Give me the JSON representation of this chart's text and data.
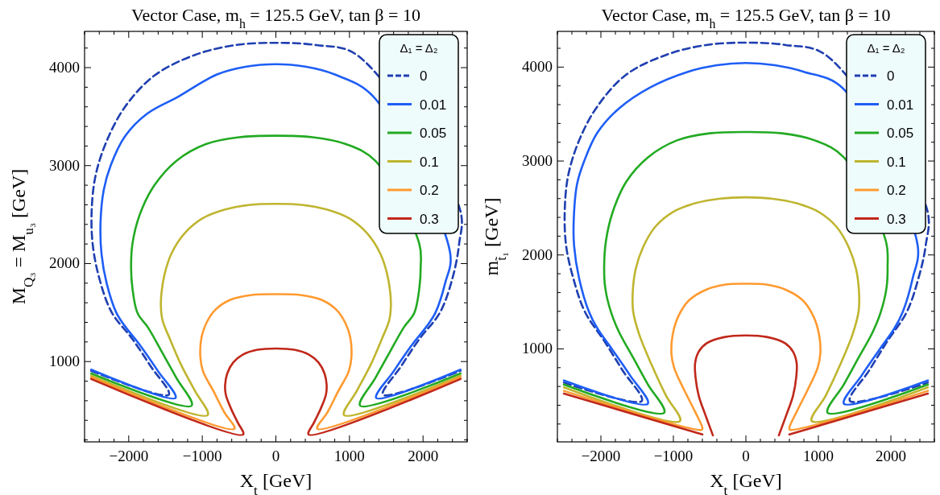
{
  "chart_data": [
    {
      "type": "line",
      "title": "Vector Case, m$_{h}$ = 125.5 GeV, tan β = 10",
      "xlabel": "X$_{t}$ [GeV]",
      "ylabel": "M$_{Q₃}$ = M$_{u₃}$ [GeV]",
      "legend_title": "Δ₁ = Δ₂",
      "legend": "top right",
      "grid": false,
      "xlim": [
        -2600,
        2600
      ],
      "ylim": [
        180,
        4370
      ],
      "xticks": [
        {
          "value": -2600,
          "label": null
        },
        {
          "value": -2400,
          "label": null
        },
        {
          "value": -2200,
          "label": null
        },
        {
          "value": -2000,
          "label": "−2000"
        },
        {
          "value": -1800,
          "label": null
        },
        {
          "value": -1600,
          "label": null
        },
        {
          "value": -1400,
          "label": null
        },
        {
          "value": -1200,
          "label": null
        },
        {
          "value": -1000,
          "label": "−1000"
        },
        {
          "value": -800,
          "label": null
        },
        {
          "value": -600,
          "label": null
        },
        {
          "value": -400,
          "label": null
        },
        {
          "value": -200,
          "label": null
        },
        0,
        {
          "value": 200,
          "label": null
        },
        {
          "value": 400,
          "label": null
        },
        {
          "value": 600,
          "label": null
        },
        {
          "value": 800,
          "label": null
        },
        1000,
        {
          "value": 1200,
          "label": null
        },
        {
          "value": 1400,
          "label": null
        },
        {
          "value": 1600,
          "label": null
        },
        {
          "value": 1800,
          "label": null
        },
        2000,
        {
          "value": 2200,
          "label": null
        },
        {
          "value": 2400,
          "label": null
        },
        {
          "value": 2600,
          "label": null
        }
      ],
      "yticks": [
        {
          "value": 200,
          "label": null
        },
        {
          "value": 400,
          "label": null
        },
        {
          "value": 600,
          "label": null
        },
        {
          "value": 800,
          "label": null
        },
        1000,
        {
          "value": 1200,
          "label": null
        },
        {
          "value": 1400,
          "label": null
        },
        {
          "value": 1600,
          "label": null
        },
        {
          "value": 1800,
          "label": null
        },
        2000,
        {
          "value": 2200,
          "label": null
        },
        {
          "value": 2400,
          "label": null
        },
        {
          "value": 2600,
          "label": null
        },
        {
          "value": 2800,
          "label": null
        },
        3000,
        {
          "value": 3200,
          "label": null
        },
        {
          "value": 3400,
          "label": null
        },
        {
          "value": 3600,
          "label": null
        },
        {
          "value": 3800,
          "label": null
        },
        4000,
        {
          "value": 4200,
          "label": null
        }
      ],
      "series": [
        {
          "name": "0",
          "color": "#1f3fb0",
          "line_style": "dashed",
          "x": [
            -2510,
            -1455,
            -1700,
            -1950,
            -2230,
            -2400,
            -2490,
            -2503,
            -2450,
            -2300,
            -2050,
            -1650,
            -1100,
            -550,
            0,
            550,
            1100,
            2503,
            2490,
            2400,
            2230,
            1950,
            1700,
            1455,
            2510
          ],
          "values": [
            905,
            661,
            950,
            1230,
            1500,
            1850,
            2200,
            2550,
            2900,
            3250,
            3600,
            3920,
            4130,
            4230,
            4253,
            4230,
            4130,
            2550,
            2200,
            1850,
            1500,
            1230,
            950,
            661,
            905
          ]
        },
        {
          "name": "0.01",
          "color": "#1e5ef5",
          "line_style": "solid",
          "x": [
            -2510,
            -1364,
            -1600,
            -1850,
            -2050,
            -2169,
            -2300,
            -2370,
            -2383,
            -2340,
            -2246,
            -2050,
            -1750,
            -1326,
            -800,
            -400,
            0,
            400,
            800,
            1326,
            2370,
            2300,
            2169,
            2050,
            1850,
            1600,
            1364,
            2510
          ],
          "values": [
            917,
            628,
            900,
            1170,
            1360,
            1500,
            1800,
            2100,
            2420,
            2750,
            3000,
            3300,
            3530,
            3704,
            3930,
            4010,
            4035,
            4010,
            3930,
            3704,
            2100,
            1800,
            1500,
            1360,
            1170,
            900,
            628,
            917
          ]
        },
        {
          "name": "0.05",
          "color": "#22aa22",
          "line_style": "solid",
          "x": [
            -2510,
            -1145,
            -1350,
            -1550,
            -1740,
            -1880,
            -1950,
            -1968,
            -1950,
            -1850,
            -1650,
            -1350,
            -950,
            -500,
            0,
            500,
            950,
            1350,
            1950,
            1968,
            1950,
            1880,
            1740,
            1550,
            1350,
            1145,
            2510
          ],
          "values": [
            878,
            550,
            830,
            1100,
            1350,
            1494,
            1750,
            1960,
            2200,
            2500,
            2800,
            3050,
            3220,
            3290,
            3305,
            3290,
            3220,
            3050,
            2200,
            1960,
            1750,
            1494,
            1350,
            1100,
            830,
            550,
            878
          ]
        },
        {
          "name": "0.1",
          "color": "#bfb52f",
          "line_style": "solid",
          "x": [
            -2510,
            -927,
            -1100,
            -1290,
            -1440,
            -1540,
            -1562,
            -1555,
            -1510,
            -1420,
            -1250,
            -1000,
            -700,
            -350,
            0,
            350,
            700,
            1000,
            1250,
            1420,
            1510,
            1555,
            1562,
            1540,
            1440,
            1290,
            1100,
            927,
            2510
          ],
          "values": [
            856,
            453,
            700,
            970,
            1230,
            1420,
            1550,
            1700,
            1900,
            2100,
            2300,
            2460,
            2550,
            2600,
            2610,
            2600,
            2550,
            2460,
            2300,
            2100,
            1900,
            1700,
            1550,
            1420,
            1230,
            970,
            700,
            453,
            856
          ]
        },
        {
          "name": "0.2",
          "color": "#ff9a30",
          "line_style": "solid",
          "x": [
            -2510,
            -564,
            -700,
            -850,
            -990,
            -1027,
            -1010,
            -940,
            -820,
            -620,
            -330,
            0,
            330,
            620,
            820,
            940,
            1010,
            1027,
            990,
            850,
            700,
            564,
            2510
          ],
          "values": [
            839,
            314,
            480,
            700,
            900,
            1050,
            1250,
            1400,
            1530,
            1630,
            1680,
            1688,
            1680,
            1630,
            1530,
            1400,
            1250,
            1050,
            900,
            700,
            480,
            314,
            839
          ]
        },
        {
          "name": "0.3",
          "color": "#c0281a",
          "line_style": "solid",
          "x": [
            -2510,
            -445,
            -520,
            -610,
            -680,
            -690,
            -660,
            -580,
            -450,
            -250,
            0,
            250,
            450,
            580,
            660,
            690,
            680,
            610,
            520,
            445,
            2510
          ],
          "values": [
            822,
            255,
            380,
            520,
            660,
            760,
            880,
            990,
            1070,
            1120,
            1133,
            1120,
            1070,
            990,
            880,
            760,
            660,
            520,
            380,
            255,
            822
          ]
        }
      ]
    },
    {
      "type": "line",
      "title": "Vector Case, m$_{h}$ = 125.5 GeV, tan β = 10",
      "xlabel": "X$_{t}$ [GeV]",
      "ylabel": "m$_{t̃₁}$ [GeV]",
      "legend_title": "Δ₁ = Δ₂",
      "legend": "top right",
      "grid": false,
      "xlim": [
        -2600,
        2600
      ],
      "ylim": [
        10,
        4380
      ],
      "xticks": [
        {
          "value": -2600,
          "label": null
        },
        {
          "value": -2400,
          "label": null
        },
        {
          "value": -2200,
          "label": null
        },
        {
          "value": -2000,
          "label": "−2000"
        },
        {
          "value": -1800,
          "label": null
        },
        {
          "value": -1600,
          "label": null
        },
        {
          "value": -1400,
          "label": null
        },
        {
          "value": -1200,
          "label": null
        },
        {
          "value": -1000,
          "label": "−1000"
        },
        {
          "value": -800,
          "label": null
        },
        {
          "value": -600,
          "label": null
        },
        {
          "value": -400,
          "label": null
        },
        {
          "value": -200,
          "label": null
        },
        0,
        {
          "value": 200,
          "label": null
        },
        {
          "value": 400,
          "label": null
        },
        {
          "value": 600,
          "label": null
        },
        {
          "value": 800,
          "label": null
        },
        1000,
        {
          "value": 1200,
          "label": null
        },
        {
          "value": 1400,
          "label": null
        },
        {
          "value": 1600,
          "label": null
        },
        {
          "value": 1800,
          "label": null
        },
        2000,
        {
          "value": 2200,
          "label": null
        },
        {
          "value": 2400,
          "label": null
        },
        {
          "value": 2600,
          "label": null
        }
      ],
      "yticks": [
        {
          "value": 200,
          "label": null
        },
        {
          "value": 400,
          "label": null
        },
        {
          "value": 600,
          "label": null
        },
        {
          "value": 800,
          "label": null
        },
        1000,
        {
          "value": 1200,
          "label": null
        },
        {
          "value": 1400,
          "label": null
        },
        {
          "value": 1600,
          "label": null
        },
        {
          "value": 1800,
          "label": null
        },
        2000,
        {
          "value": 2200,
          "label": null
        },
        {
          "value": 2400,
          "label": null
        },
        {
          "value": 2600,
          "label": null
        },
        {
          "value": 2800,
          "label": null
        },
        3000,
        {
          "value": 3200,
          "label": null
        },
        {
          "value": 3400,
          "label": null
        },
        {
          "value": 3600,
          "label": null
        },
        {
          "value": 3800,
          "label": null
        },
        4000,
        {
          "value": 4200,
          "label": null
        }
      ],
      "series": [
        {
          "name": "0",
          "color": "#1f3fb0",
          "line_style": "dashed",
          "x": [
            -2510,
            -1436,
            -1700,
            -1950,
            -2220,
            -2380,
            -2480,
            -2498,
            -2450,
            -2300,
            -2050,
            -1650,
            -1100,
            -550,
            0,
            550,
            1100,
            2498,
            2480,
            2380,
            2220,
            1950,
            1700,
            1436,
            2510
          ],
          "values": [
            641,
            445,
            770,
            1080,
            1394,
            1750,
            2100,
            2488,
            2850,
            3220,
            3580,
            3920,
            4130,
            4235,
            4260,
            4235,
            4130,
            2488,
            2100,
            1750,
            1394,
            1080,
            770,
            445,
            641
          ]
        },
        {
          "name": "0.01",
          "color": "#1e5ef5",
          "line_style": "solid",
          "x": [
            -2510,
            -1353,
            -1600,
            -1850,
            -2050,
            -2164,
            -2300,
            -2370,
            -2374,
            -2330,
            -2230,
            -2050,
            -1750,
            -1330,
            -800,
            -400,
            0,
            400,
            800,
            1330,
            2370,
            2300,
            2164,
            2050,
            1850,
            1600,
            1353,
            2510
          ],
          "values": [
            664,
            416,
            720,
            1000,
            1220,
            1394,
            1750,
            2100,
            2385,
            2750,
            3000,
            3300,
            3560,
            3780,
            3950,
            4020,
            4044,
            4020,
            3950,
            3780,
            2100,
            1750,
            1394,
            1220,
            1000,
            720,
            416,
            664
          ]
        },
        {
          "name": "0.05",
          "color": "#22aa22",
          "line_style": "solid",
          "x": [
            -2510,
            -1127,
            -1350,
            -1550,
            -1750,
            -1862,
            -1940,
            -1955,
            -1930,
            -1840,
            -1650,
            -1350,
            -950,
            -500,
            0,
            500,
            950,
            1350,
            1930,
            1955,
            1940,
            1862,
            1750,
            1550,
            1350,
            1127,
            2510
          ],
          "values": [
            620,
            320,
            620,
            900,
            1180,
            1394,
            1650,
            1872,
            2150,
            2450,
            2780,
            3040,
            3220,
            3295,
            3309,
            3295,
            3220,
            3040,
            2150,
            1872,
            1650,
            1394,
            1180,
            900,
            620,
            320,
            620
          ]
        },
        {
          "name": "0.1",
          "color": "#bfb52f",
          "line_style": "solid",
          "x": [
            -2510,
            -909,
            -1100,
            -1300,
            -1470,
            -1555,
            -1561,
            -1520,
            -1420,
            -1250,
            -1000,
            -700,
            -350,
            0,
            350,
            700,
            1000,
            1250,
            1420,
            1520,
            1561,
            1555,
            1470,
            1300,
            1100,
            909,
            2510
          ],
          "values": [
            591,
            232,
            500,
            830,
            1150,
            1400,
            1600,
            1850,
            2080,
            2300,
            2460,
            2550,
            2600,
            2614,
            2600,
            2550,
            2460,
            2300,
            2080,
            1850,
            1600,
            1400,
            1150,
            830,
            500,
            232,
            591
          ]
        },
        {
          "name": "0.2",
          "color": "#ff9a30",
          "line_style": "solid",
          "x": [
            -2510,
            -607,
            -600,
            -700,
            -850,
            -990,
            -1027,
            -1010,
            -930,
            -780,
            -550,
            -280,
            0,
            280,
            550,
            780,
            930,
            1010,
            1027,
            990,
            850,
            700,
            600,
            607,
            2510
          ],
          "values": [
            553,
            139,
            160,
            330,
            560,
            800,
            950,
            1150,
            1350,
            1520,
            1630,
            1685,
            1694,
            1685,
            1630,
            1520,
            1350,
            1150,
            950,
            800,
            560,
            330,
            160,
            139,
            553
          ]
        },
        {
          "name": "0.3",
          "color": "#c0281a",
          "line_style": "solid",
          "x": [
            -2510,
            -600,
            -527,
            -455,
            -560,
            -650,
            -695,
            -700,
            -650,
            -540,
            -300,
            0,
            300,
            540,
            650,
            700,
            695,
            650,
            560,
            455,
            527,
            600,
            2510
          ],
          "values": [
            524,
            89,
            null,
            80,
            300,
            500,
            700,
            850,
            970,
            1060,
            1125,
            1143,
            1125,
            1060,
            970,
            850,
            700,
            500,
            300,
            80,
            null,
            89,
            524
          ]
        }
      ]
    }
  ]
}
